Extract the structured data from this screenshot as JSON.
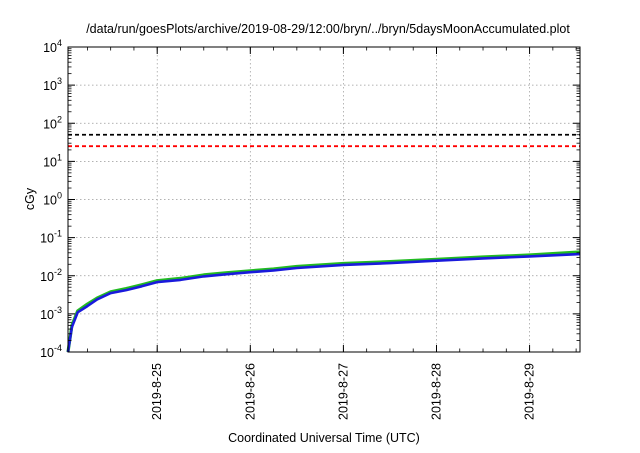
{
  "chart_data": {
    "type": "line",
    "title": "/data/run/goesPlots/archive/2019-08-29/12:00/bryn/../bryn/5daysMoonAccumulated.plot",
    "xlabel": "Coordinated Universal Time (UTC)",
    "ylabel": "cGy",
    "yscale": "log",
    "ylim": [
      0.0001,
      10000
    ],
    "xlim": [
      "2019-08-24 01:00",
      "2019-08-29 13:00"
    ],
    "grid": true,
    "x_ticks": [
      "2019-8-25",
      "2019-8-26",
      "2019-8-27",
      "2019-8-28",
      "2019-8-29"
    ],
    "y_ticks": [
      {
        "value": 0.0001,
        "base": "10",
        "exp": "-4"
      },
      {
        "value": 0.001,
        "base": "10",
        "exp": "-3"
      },
      {
        "value": 0.01,
        "base": "10",
        "exp": "-2"
      },
      {
        "value": 0.1,
        "base": "10",
        "exp": "-1"
      },
      {
        "value": 1,
        "base": "10",
        "exp": "0"
      },
      {
        "value": 10,
        "base": "10",
        "exp": "1"
      },
      {
        "value": 100,
        "base": "10",
        "exp": "2"
      },
      {
        "value": 1000,
        "base": "10",
        "exp": "3"
      },
      {
        "value": 10000,
        "base": "10",
        "exp": "4"
      }
    ],
    "thresholds": [
      {
        "value": 50,
        "color": "#000000",
        "style": "dashed"
      },
      {
        "value": 25,
        "color": "#ff0000",
        "style": "dashed"
      }
    ],
    "series": [
      {
        "color": "#22bb22",
        "points": [
          [
            "2019-08-24 01:00",
            0.0001
          ],
          [
            "2019-08-24 02:00",
            0.0005
          ],
          [
            "2019-08-24 03:30",
            0.0012
          ],
          [
            "2019-08-24 06:00",
            0.0018
          ],
          [
            "2019-08-24 08:30",
            0.0026
          ],
          [
            "2019-08-24 12:00",
            0.0038
          ],
          [
            "2019-08-24 16:00",
            0.0046
          ],
          [
            "2019-08-24 20:00",
            0.0058
          ],
          [
            "2019-08-25 00:00",
            0.0074
          ],
          [
            "2019-08-25 06:00",
            0.0085
          ],
          [
            "2019-08-25 12:00",
            0.0105
          ],
          [
            "2019-08-25 18:00",
            0.012
          ],
          [
            "2019-08-26 00:00",
            0.0135
          ],
          [
            "2019-08-26 06:00",
            0.015
          ],
          [
            "2019-08-26 12:00",
            0.0175
          ],
          [
            "2019-08-27 00:00",
            0.021
          ],
          [
            "2019-08-27 12:00",
            0.0235
          ],
          [
            "2019-08-28 00:00",
            0.027
          ],
          [
            "2019-08-28 12:00",
            0.031
          ],
          [
            "2019-08-29 00:00",
            0.035
          ],
          [
            "2019-08-29 13:00",
            0.042
          ]
        ]
      },
      {
        "color": "#1a1adc",
        "points": [
          [
            "2019-08-24 01:00",
            0.0001
          ],
          [
            "2019-08-24 02:00",
            0.00045
          ],
          [
            "2019-08-24 03:30",
            0.0011
          ],
          [
            "2019-08-24 06:00",
            0.0016
          ],
          [
            "2019-08-24 08:30",
            0.0024
          ],
          [
            "2019-08-24 12:00",
            0.0035
          ],
          [
            "2019-08-24 16:00",
            0.0042
          ],
          [
            "2019-08-24 20:00",
            0.0053
          ],
          [
            "2019-08-25 00:00",
            0.0068
          ],
          [
            "2019-08-25 06:00",
            0.0078
          ],
          [
            "2019-08-25 12:00",
            0.0096
          ],
          [
            "2019-08-25 18:00",
            0.011
          ],
          [
            "2019-08-26 00:00",
            0.0124
          ],
          [
            "2019-08-26 06:00",
            0.0138
          ],
          [
            "2019-08-26 12:00",
            0.016
          ],
          [
            "2019-08-27 00:00",
            0.0193
          ],
          [
            "2019-08-27 12:00",
            0.0215
          ],
          [
            "2019-08-28 00:00",
            0.0248
          ],
          [
            "2019-08-28 12:00",
            0.0285
          ],
          [
            "2019-08-29 00:00",
            0.0322
          ],
          [
            "2019-08-29 13:00",
            0.037
          ]
        ]
      }
    ]
  }
}
